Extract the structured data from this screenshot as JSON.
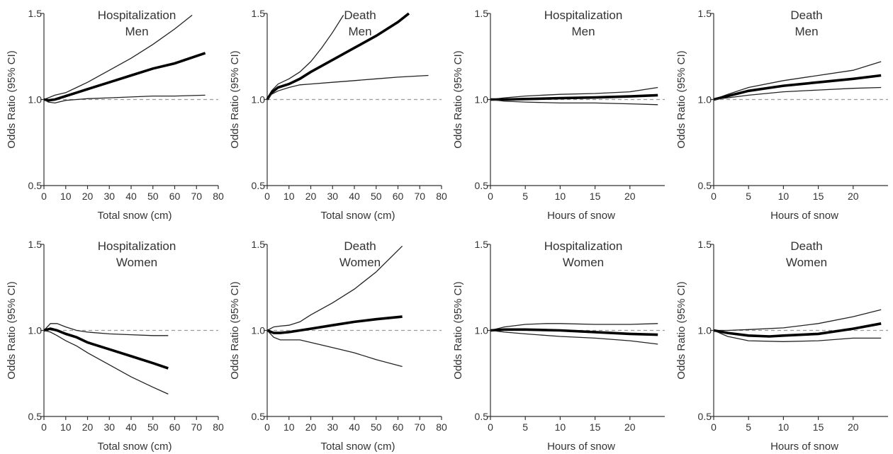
{
  "chart_data": [
    {
      "type": "line",
      "title": "Hospitalization",
      "subtitle": "Men",
      "xlabel": "Total snow (cm)",
      "ylabel": "Odds Ratio (95% CI)",
      "xlim": [
        0,
        80
      ],
      "ylim": [
        0.5,
        1.5
      ],
      "xticks": [
        0,
        10,
        20,
        30,
        40,
        50,
        60,
        70,
        80
      ],
      "yticks": [
        0.5,
        1.0,
        1.5
      ],
      "yticklabels": [
        "0.5",
        "1.0",
        "1.5"
      ],
      "reference_line": 1.0,
      "series": [
        {
          "role": "upper",
          "x": [
            0,
            2,
            5,
            10,
            15,
            20,
            30,
            40,
            50,
            60,
            68
          ],
          "values": [
            1.0,
            1.01,
            1.025,
            1.04,
            1.07,
            1.1,
            1.17,
            1.24,
            1.32,
            1.41,
            1.49
          ]
        },
        {
          "role": "estimate",
          "x": [
            0,
            2,
            5,
            10,
            15,
            20,
            30,
            40,
            50,
            60,
            74
          ],
          "values": [
            1.0,
            0.995,
            1.0,
            1.02,
            1.04,
            1.06,
            1.1,
            1.14,
            1.18,
            1.21,
            1.27
          ]
        },
        {
          "role": "lower",
          "x": [
            0,
            2,
            5,
            10,
            15,
            20,
            30,
            40,
            50,
            60,
            74
          ],
          "values": [
            1.0,
            0.985,
            0.98,
            0.995,
            1.0,
            1.005,
            1.01,
            1.015,
            1.02,
            1.02,
            1.025
          ]
        }
      ]
    },
    {
      "type": "line",
      "title": "Death",
      "subtitle": "Men",
      "xlabel": "Total snow (cm)",
      "ylabel": "Odds Ratio (95% CI)",
      "xlim": [
        0,
        80
      ],
      "ylim": [
        0.5,
        1.5
      ],
      "xticks": [
        0,
        10,
        20,
        30,
        40,
        50,
        60,
        70,
        80
      ],
      "yticks": [
        0.5,
        1.0,
        1.5
      ],
      "yticklabels": [
        "0.5",
        "1.0",
        "1.5"
      ],
      "reference_line": 1.0,
      "series": [
        {
          "role": "upper",
          "x": [
            0,
            2,
            5,
            10,
            15,
            20,
            25,
            30,
            35
          ],
          "values": [
            1.0,
            1.05,
            1.09,
            1.12,
            1.16,
            1.22,
            1.3,
            1.39,
            1.49
          ]
        },
        {
          "role": "estimate",
          "x": [
            0,
            2,
            5,
            10,
            15,
            20,
            30,
            40,
            50,
            60,
            65
          ],
          "values": [
            1.0,
            1.04,
            1.07,
            1.09,
            1.12,
            1.16,
            1.23,
            1.3,
            1.37,
            1.45,
            1.5
          ]
        },
        {
          "role": "lower",
          "x": [
            0,
            2,
            5,
            10,
            15,
            20,
            30,
            40,
            50,
            60,
            74
          ],
          "values": [
            1.0,
            1.03,
            1.05,
            1.07,
            1.085,
            1.09,
            1.1,
            1.11,
            1.12,
            1.13,
            1.14
          ]
        }
      ]
    },
    {
      "type": "line",
      "title": "Hospitalization",
      "subtitle": "Men",
      "xlabel": "Hours of snow",
      "ylabel": "Odds Ratio (95% CI)",
      "xlim": [
        0,
        25
      ],
      "ylim": [
        0.5,
        1.5
      ],
      "xticks": [
        0,
        5,
        10,
        15,
        20
      ],
      "yticks": [
        0.5,
        1.0,
        1.5
      ],
      "yticklabels": [
        "0.5",
        "1.0",
        "1.5"
      ],
      "reference_line": 1.0,
      "series": [
        {
          "role": "upper",
          "x": [
            0,
            2,
            5,
            10,
            15,
            20,
            24
          ],
          "values": [
            1.0,
            1.01,
            1.02,
            1.03,
            1.035,
            1.045,
            1.07
          ]
        },
        {
          "role": "estimate",
          "x": [
            0,
            2,
            5,
            10,
            15,
            20,
            24
          ],
          "values": [
            1.0,
            1.0,
            1.003,
            1.008,
            1.012,
            1.018,
            1.025
          ]
        },
        {
          "role": "lower",
          "x": [
            0,
            2,
            5,
            10,
            15,
            20,
            24
          ],
          "values": [
            1.0,
            0.99,
            0.985,
            0.98,
            0.98,
            0.975,
            0.97
          ]
        }
      ]
    },
    {
      "type": "line",
      "title": "Death",
      "subtitle": "Men",
      "xlabel": "Hours of snow",
      "ylabel": "Odds Ratio (95% CI)",
      "xlim": [
        0,
        25
      ],
      "ylim": [
        0.5,
        1.5
      ],
      "xticks": [
        0,
        5,
        10,
        15,
        20
      ],
      "yticks": [
        0.5,
        1.0,
        1.5
      ],
      "yticklabels": [
        "0.5",
        "1.0",
        "1.5"
      ],
      "reference_line": 1.0,
      "series": [
        {
          "role": "upper",
          "x": [
            0,
            2,
            5,
            10,
            15,
            20,
            24
          ],
          "values": [
            1.0,
            1.03,
            1.07,
            1.11,
            1.14,
            1.17,
            1.22
          ]
        },
        {
          "role": "estimate",
          "x": [
            0,
            2,
            5,
            10,
            15,
            20,
            24
          ],
          "values": [
            1.0,
            1.02,
            1.05,
            1.08,
            1.1,
            1.12,
            1.14
          ]
        },
        {
          "role": "lower",
          "x": [
            0,
            2,
            5,
            10,
            15,
            20,
            24
          ],
          "values": [
            1.0,
            1.01,
            1.025,
            1.045,
            1.055,
            1.065,
            1.07
          ]
        }
      ]
    },
    {
      "type": "line",
      "title": "Hospitalization",
      "subtitle": "Women",
      "xlabel": "Total snow (cm)",
      "ylabel": "Odds Ratio (95% CI)",
      "xlim": [
        0,
        80
      ],
      "ylim": [
        0.5,
        1.5
      ],
      "xticks": [
        0,
        10,
        20,
        30,
        40,
        50,
        60,
        70,
        80
      ],
      "yticks": [
        0.5,
        1.0,
        1.5
      ],
      "yticklabels": [
        "0.5",
        "1.0",
        "1.5"
      ],
      "reference_line": 1.0,
      "series": [
        {
          "role": "upper",
          "x": [
            0,
            3,
            6,
            10,
            15,
            20,
            30,
            40,
            50,
            57
          ],
          "values": [
            1.0,
            1.04,
            1.04,
            1.02,
            1.0,
            0.99,
            0.98,
            0.975,
            0.97,
            0.97
          ]
        },
        {
          "role": "estimate",
          "x": [
            0,
            3,
            6,
            10,
            15,
            20,
            30,
            40,
            50,
            57
          ],
          "values": [
            1.0,
            1.01,
            1.0,
            0.98,
            0.96,
            0.93,
            0.89,
            0.85,
            0.81,
            0.78
          ]
        },
        {
          "role": "lower",
          "x": [
            0,
            3,
            6,
            10,
            15,
            20,
            30,
            40,
            50,
            57
          ],
          "values": [
            1.0,
            0.99,
            0.97,
            0.94,
            0.91,
            0.87,
            0.8,
            0.73,
            0.67,
            0.63
          ]
        }
      ]
    },
    {
      "type": "line",
      "title": "Death",
      "subtitle": "Women",
      "xlabel": "Total snow (cm)",
      "ylabel": "Odds Ratio (95% CI)",
      "xlim": [
        0,
        80
      ],
      "ylim": [
        0.5,
        1.5
      ],
      "xticks": [
        0,
        10,
        20,
        30,
        40,
        50,
        60,
        70,
        80
      ],
      "yticks": [
        0.5,
        1.0,
        1.5
      ],
      "yticklabels": [
        "0.5",
        "1.0",
        "1.5"
      ],
      "reference_line": 1.0,
      "series": [
        {
          "role": "upper",
          "x": [
            0,
            3,
            6,
            10,
            15,
            20,
            30,
            40,
            50,
            62
          ],
          "values": [
            1.0,
            1.02,
            1.025,
            1.03,
            1.05,
            1.09,
            1.16,
            1.24,
            1.34,
            1.49
          ]
        },
        {
          "role": "estimate",
          "x": [
            0,
            3,
            6,
            10,
            20,
            30,
            40,
            50,
            62
          ],
          "values": [
            1.0,
            0.985,
            0.985,
            0.99,
            1.01,
            1.03,
            1.05,
            1.065,
            1.08
          ]
        },
        {
          "role": "lower",
          "x": [
            0,
            3,
            6,
            10,
            15,
            20,
            30,
            40,
            50,
            62
          ],
          "values": [
            1.0,
            0.96,
            0.945,
            0.945,
            0.945,
            0.93,
            0.9,
            0.87,
            0.83,
            0.79
          ]
        }
      ]
    },
    {
      "type": "line",
      "title": "Hospitalization",
      "subtitle": "Women",
      "xlabel": "Hours of snow",
      "ylabel": "Odds Ratio (95% CI)",
      "xlim": [
        0,
        25
      ],
      "ylim": [
        0.5,
        1.5
      ],
      "xticks": [
        0,
        5,
        10,
        15,
        20
      ],
      "yticks": [
        0.5,
        1.0,
        1.5
      ],
      "yticklabels": [
        "0.5",
        "1.0",
        "1.5"
      ],
      "reference_line": 1.0,
      "series": [
        {
          "role": "upper",
          "x": [
            0,
            2,
            5,
            8,
            10,
            15,
            20,
            24
          ],
          "values": [
            1.0,
            1.02,
            1.035,
            1.04,
            1.04,
            1.035,
            1.035,
            1.04
          ]
        },
        {
          "role": "estimate",
          "x": [
            0,
            2,
            5,
            10,
            15,
            20,
            24
          ],
          "values": [
            1.0,
            1.005,
            1.005,
            1.0,
            0.99,
            0.98,
            0.975
          ]
        },
        {
          "role": "lower",
          "x": [
            0,
            2,
            5,
            10,
            15,
            20,
            24
          ],
          "values": [
            1.0,
            0.99,
            0.98,
            0.965,
            0.955,
            0.94,
            0.92
          ]
        }
      ]
    },
    {
      "type": "line",
      "title": "Death",
      "subtitle": "Women",
      "xlabel": "Hours of snow",
      "ylabel": "Odds Ratio (95% CI)",
      "xlim": [
        0,
        25
      ],
      "ylim": [
        0.5,
        1.5
      ],
      "xticks": [
        0,
        5,
        10,
        15,
        20
      ],
      "yticks": [
        0.5,
        1.0,
        1.5
      ],
      "yticklabels": [
        "0.5",
        "1.0",
        "1.5"
      ],
      "reference_line": 1.0,
      "series": [
        {
          "role": "upper",
          "x": [
            0,
            2,
            5,
            10,
            15,
            20,
            24
          ],
          "values": [
            1.0,
            1.0,
            1.005,
            1.015,
            1.04,
            1.08,
            1.12
          ]
        },
        {
          "role": "estimate",
          "x": [
            0,
            2,
            5,
            8,
            10,
            15,
            20,
            24
          ],
          "values": [
            1.0,
            0.985,
            0.97,
            0.965,
            0.97,
            0.98,
            1.01,
            1.04
          ]
        },
        {
          "role": "lower",
          "x": [
            0,
            2,
            5,
            10,
            15,
            20,
            24
          ],
          "values": [
            1.0,
            0.965,
            0.94,
            0.935,
            0.94,
            0.955,
            0.955
          ]
        }
      ]
    }
  ]
}
